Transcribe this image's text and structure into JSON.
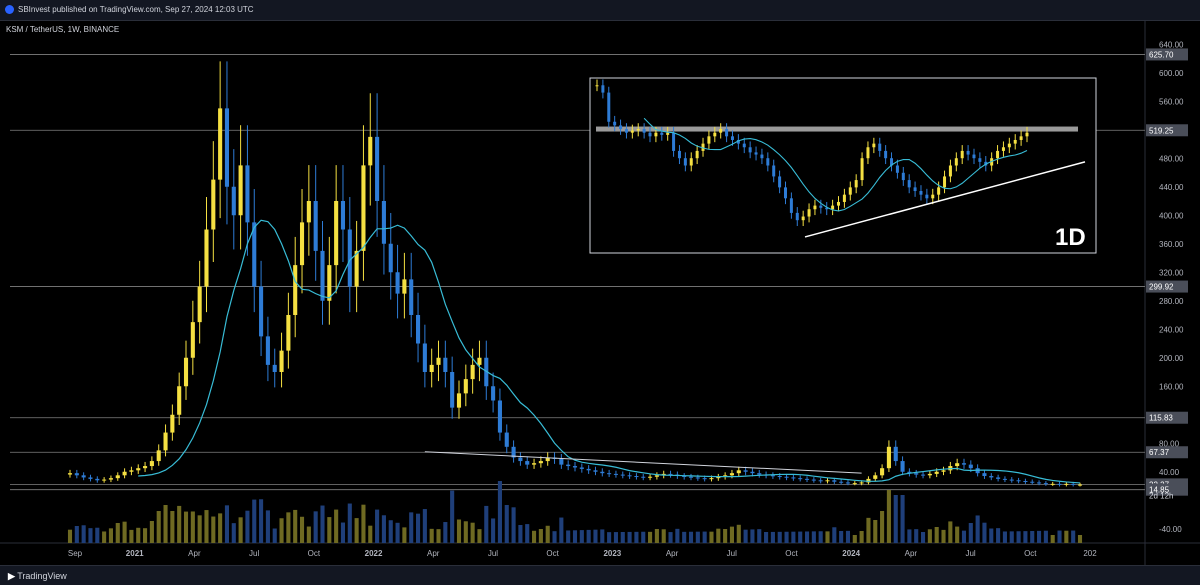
{
  "header": {
    "published": "SBInvest published on TradingView.com, Sep 27, 2024 12:03 UTC"
  },
  "symbol": {
    "label": "KSM / TetherUS, 1W, BINANCE"
  },
  "footer": {
    "logo": "TradingView"
  },
  "colors": {
    "up": "#f5e042",
    "down": "#2e7cd6",
    "ma": "#38bcd6",
    "hline": "#808080",
    "vol_up": "#6f6a22",
    "vol_down": "#1f3f7a"
  },
  "chart_data": {
    "type": "candlestick",
    "title": "KSM / TetherUS, 1W, BINANCE",
    "x_ticks": [
      "Sep",
      "2021",
      "Apr",
      "Jul",
      "Oct",
      "2022",
      "Apr",
      "Jul",
      "Oct",
      "2023",
      "Apr",
      "Jul",
      "Oct",
      "2024",
      "Apr",
      "Jul",
      "Oct",
      "202"
    ],
    "y_ticks": [
      640,
      600,
      560,
      520,
      480,
      440,
      400,
      360,
      320,
      280,
      240,
      200,
      160,
      120,
      80,
      40,
      -40
    ],
    "ylim": [
      -60,
      660
    ],
    "horizontal_levels": [
      {
        "value": 625.7,
        "label": "625.70"
      },
      {
        "value": 519.25,
        "label": "519.25"
      },
      {
        "value": 299.92,
        "label": "299.92"
      },
      {
        "value": 115.83,
        "label": "115.83"
      },
      {
        "value": 67.37,
        "label": "67.37"
      },
      {
        "value": 22.27,
        "label": "22.27"
      },
      {
        "value": 14.85,
        "label": "14.85"
      }
    ],
    "price_label": {
      "value": 22.27,
      "countdown": "2d 12h"
    },
    "weekly_closes": [
      38,
      35,
      32,
      30,
      28,
      29,
      31,
      35,
      40,
      42,
      45,
      48,
      55,
      70,
      95,
      120,
      160,
      200,
      250,
      300,
      380,
      450,
      550,
      440,
      400,
      470,
      390,
      300,
      230,
      190,
      180,
      210,
      260,
      330,
      390,
      420,
      350,
      280,
      330,
      420,
      380,
      300,
      350,
      470,
      510,
      420,
      360,
      320,
      290,
      310,
      260,
      220,
      180,
      190,
      200,
      180,
      130,
      150,
      170,
      190,
      200,
      160,
      140,
      95,
      75,
      60,
      55,
      50,
      52,
      55,
      60,
      58,
      50,
      48,
      46,
      44,
      42,
      40,
      38,
      37,
      36,
      35,
      34,
      33,
      32,
      33,
      35,
      37,
      36,
      34,
      33,
      32,
      31,
      30,
      31,
      33,
      35,
      38,
      42,
      40,
      38,
      36,
      35,
      34,
      33,
      32,
      31,
      30,
      29,
      28,
      27,
      28,
      26,
      25,
      24,
      24,
      25,
      30,
      35,
      45,
      75,
      55,
      40,
      38,
      36,
      35,
      37,
      40,
      42,
      48,
      52,
      50,
      45,
      38,
      34,
      32,
      30,
      29,
      28,
      27,
      26,
      25,
      24,
      23,
      23,
      22,
      23,
      22,
      22
    ],
    "inset": {
      "label": "1D",
      "closes": [
        570,
        560,
        520,
        515,
        510,
        505,
        508,
        510,
        505,
        500,
        505,
        502,
        505,
        480,
        470,
        460,
        470,
        480,
        490,
        500,
        505,
        510,
        500,
        495,
        490,
        485,
        478,
        475,
        470,
        460,
        445,
        430,
        415,
        395,
        385,
        390,
        400,
        405,
        402,
        400,
        405,
        410,
        420,
        430,
        440,
        470,
        485,
        490,
        480,
        470,
        460,
        450,
        440,
        430,
        425,
        420,
        415,
        420,
        430,
        445,
        460,
        470,
        480,
        475,
        470,
        465,
        460,
        470,
        480,
        485,
        490,
        495,
        500,
        505
      ]
    }
  }
}
